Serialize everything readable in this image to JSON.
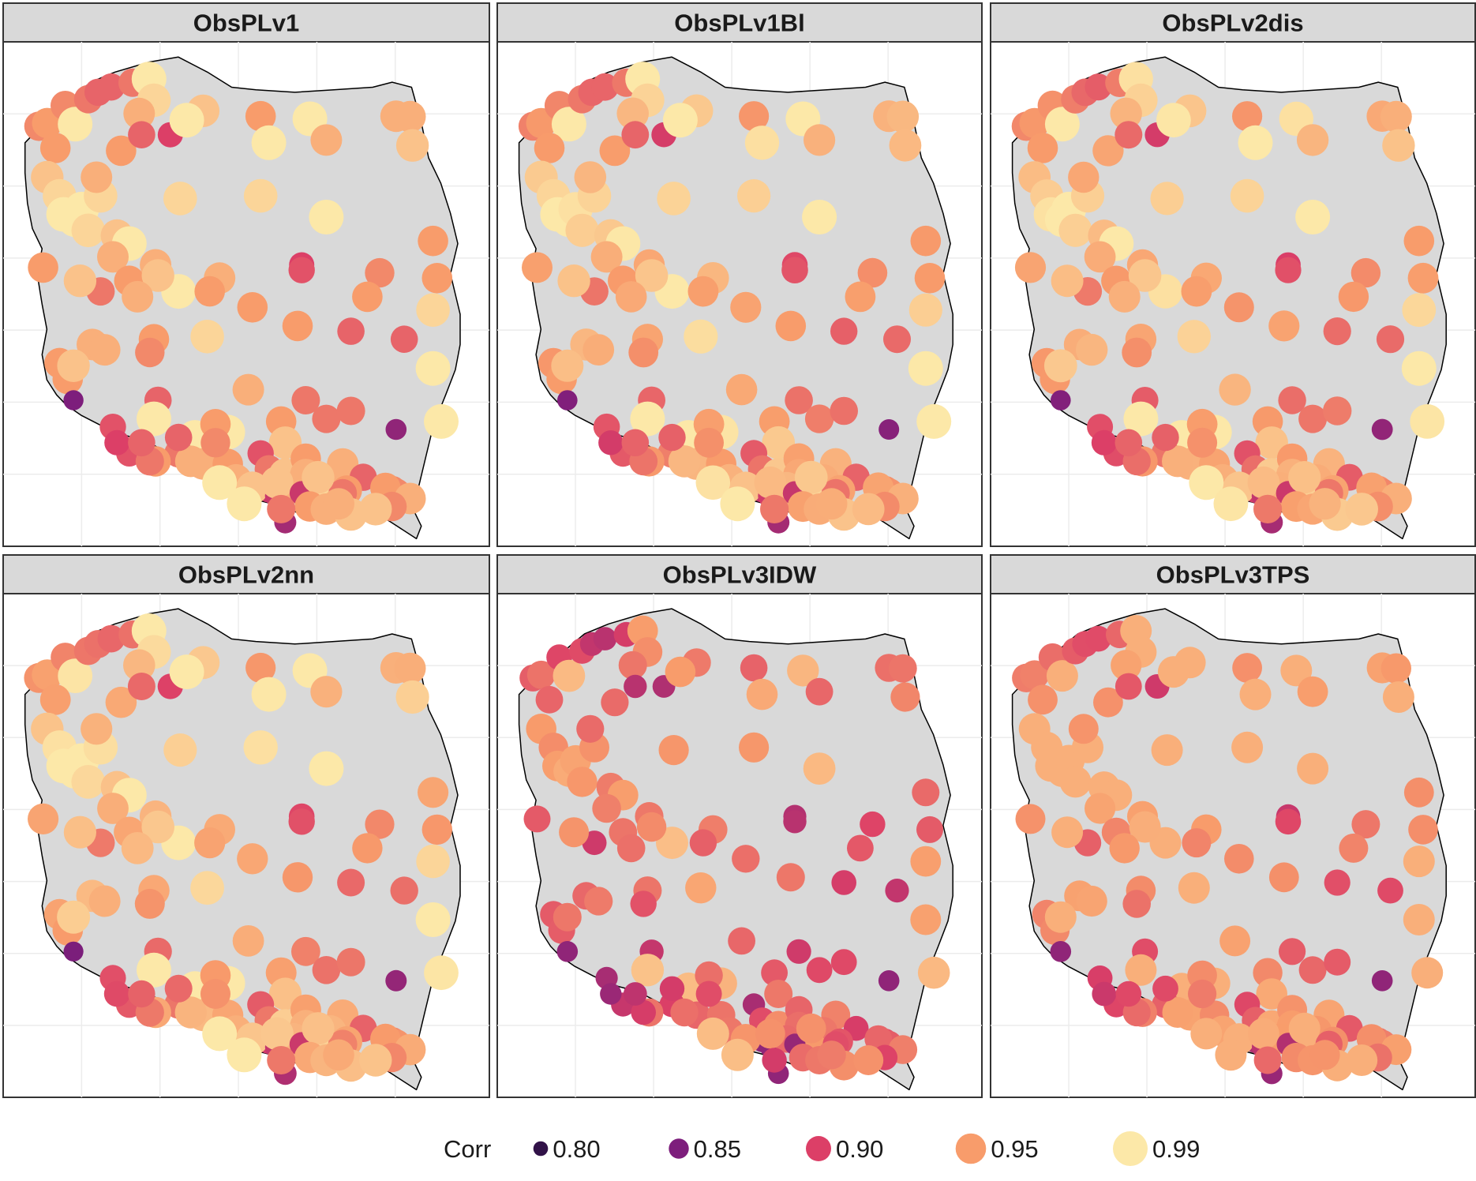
{
  "chart_data": {
    "type": "scatter",
    "panels": [
      {
        "title": "ObsPLv1",
        "points": [
          [
            0.2,
            0.168,
            0.94
          ],
          [
            0.3,
            0.156,
            0.95
          ],
          [
            0.52,
            0.09,
            0.94
          ],
          [
            0.64,
            0.16,
            0.99
          ],
          [
            0.8,
            0.066,
            0.93
          ],
          [
            0.92,
            0.04,
            0.92
          ],
          [
            1.08,
            0.02,
            0.92
          ],
          [
            1.34,
            0.004,
            0.93
          ],
          [
            1.54,
            -0.01,
            0.99
          ],
          [
            1.6,
            0.07,
            0.98
          ],
          [
            1.42,
            0.12,
            0.96
          ],
          [
            2.2,
            0.11,
            0.97
          ],
          [
            2.9,
            0.13,
            0.95
          ],
          [
            3.5,
            0.14,
            0.99
          ],
          [
            4.55,
            0.13,
            0.96
          ],
          [
            4.72,
            0.132,
            0.96
          ],
          [
            0.4,
            0.25,
            0.95
          ],
          [
            0.3,
            0.36,
            0.97
          ],
          [
            0.45,
            0.43,
            0.98
          ],
          [
            0.5,
            0.5,
            0.99
          ],
          [
            0.64,
            0.52,
            0.99
          ],
          [
            0.72,
            0.48,
            0.99
          ],
          [
            0.8,
            0.56,
            0.98
          ],
          [
            0.95,
            0.43,
            0.98
          ],
          [
            0.9,
            0.36,
            0.96
          ],
          [
            1.2,
            0.26,
            0.95
          ],
          [
            1.8,
            0.2,
            0.9
          ],
          [
            1.45,
            0.2,
            0.92
          ],
          [
            2.0,
            0.145,
            0.99
          ],
          [
            3.0,
            0.23,
            0.99
          ],
          [
            3.7,
            0.22,
            0.96
          ],
          [
            4.75,
            0.24,
            0.97
          ],
          [
            1.92,
            0.44,
            0.98
          ],
          [
            2.9,
            0.43,
            0.98
          ],
          [
            3.7,
            0.51,
            0.99
          ],
          [
            0.25,
            0.7,
            0.95
          ],
          [
            1.15,
            0.58,
            0.97
          ],
          [
            1.3,
            0.61,
            0.99
          ],
          [
            1.1,
            0.66,
            0.96
          ],
          [
            1.3,
            0.75,
            0.95
          ],
          [
            0.95,
            0.79,
            0.93
          ],
          [
            1.62,
            0.69,
            0.96
          ],
          [
            1.9,
            0.79,
            0.99
          ],
          [
            0.7,
            0.75,
            0.97
          ],
          [
            0.85,
            0.99,
            0.96
          ],
          [
            0.45,
            1.06,
            0.95
          ],
          [
            3.4,
            0.69,
            0.9
          ],
          [
            3.4,
            0.71,
            0.91
          ],
          [
            4.35,
            0.72,
            0.94
          ],
          [
            4.2,
            0.81,
            0.95
          ],
          [
            5.0,
            0.6,
            0.95
          ],
          [
            5.05,
            0.74,
            0.95
          ],
          [
            5.0,
            0.86,
            0.98
          ],
          [
            1.0,
            1.01,
            0.96
          ],
          [
            1.65,
            0.73,
            0.97
          ],
          [
            2.4,
            0.74,
            0.96
          ],
          [
            2.28,
            0.79,
            0.95
          ],
          [
            1.4,
            0.81,
            0.96
          ],
          [
            1.6,
            0.97,
            0.95
          ],
          [
            2.25,
            0.96,
            0.98
          ],
          [
            2.8,
            0.85,
            0.95
          ],
          [
            3.35,
            0.92,
            0.95
          ],
          [
            4.0,
            0.94,
            0.92
          ],
          [
            4.65,
            0.97,
            0.92
          ],
          [
            5.0,
            1.08,
            0.99
          ],
          [
            0.55,
            1.12,
            0.95
          ],
          [
            0.62,
            1.07,
            0.97
          ],
          [
            0.62,
            1.2,
            0.85
          ],
          [
            1.55,
            1.02,
            0.94
          ],
          [
            1.65,
            1.2,
            0.92
          ],
          [
            1.1,
            1.3,
            0.91
          ],
          [
            1.6,
            1.27,
            0.99
          ],
          [
            2.1,
            1.34,
            0.99
          ],
          [
            2.5,
            1.32,
            0.99
          ],
          [
            1.9,
            1.4,
            0.93
          ],
          [
            2.35,
            1.29,
            0.95
          ],
          [
            2.75,
            1.16,
            0.96
          ],
          [
            3.15,
            1.28,
            0.95
          ],
          [
            3.2,
            1.36,
            0.97
          ],
          [
            3.45,
            1.2,
            0.93
          ],
          [
            3.7,
            1.27,
            0.93
          ],
          [
            4.0,
            1.24,
            0.93
          ],
          [
            4.55,
            1.31,
            0.86
          ],
          [
            5.1,
            1.28,
            0.99
          ],
          [
            2.2,
            1.44,
            0.96
          ],
          [
            2.5,
            1.44,
            0.95
          ],
          [
            2.6,
            1.5,
            0.96
          ],
          [
            2.9,
            1.4,
            0.91
          ],
          [
            3.0,
            1.46,
            0.93
          ],
          [
            3.2,
            1.48,
            0.97
          ],
          [
            3.45,
            1.42,
            0.95
          ],
          [
            3.45,
            1.48,
            0.96
          ],
          [
            3.9,
            1.44,
            0.96
          ],
          [
            4.15,
            1.49,
            0.92
          ],
          [
            4.5,
            1.54,
            0.94
          ],
          [
            3.0,
            1.54,
            0.89
          ],
          [
            2.8,
            1.53,
            0.97
          ],
          [
            3.1,
            1.56,
            0.89
          ],
          [
            3.3,
            1.53,
            0.96
          ],
          [
            3.6,
            1.54,
            0.95
          ],
          [
            3.75,
            1.5,
            0.96
          ],
          [
            3.6,
            1.56,
            0.98
          ],
          [
            3.95,
            1.54,
            0.95
          ],
          [
            4.55,
            1.55,
            0.94
          ],
          [
            4.42,
            1.53,
            0.95
          ],
          [
            4.72,
            1.57,
            0.96
          ],
          [
            2.05,
            1.43,
            0.96
          ],
          [
            1.9,
            1.34,
            0.92
          ],
          [
            1.3,
            1.4,
            0.91
          ],
          [
            1.15,
            1.36,
            0.9
          ],
          [
            1.62,
            1.43,
            0.95
          ],
          [
            2.35,
            1.36,
            0.94
          ],
          [
            1.55,
            1.43,
            0.93
          ],
          [
            3.9,
            1.55,
            0.93
          ],
          [
            1.45,
            1.36,
            0.92
          ],
          [
            2.4,
            1.51,
            0.99
          ],
          [
            3.1,
            1.51,
            0.97
          ],
          [
            3.4,
            1.55,
            0.89
          ],
          [
            3.6,
            1.49,
            0.97
          ],
          [
            2.7,
            1.59,
            0.99
          ],
          [
            3.2,
            1.66,
            0.87
          ],
          [
            3.5,
            1.6,
            0.95
          ],
          [
            3.7,
            1.61,
            0.96
          ],
          [
            4.0,
            1.63,
            0.97
          ],
          [
            4.5,
            1.6,
            0.94
          ],
          [
            3.15,
            1.61,
            0.93
          ],
          [
            3.85,
            1.59,
            0.96
          ],
          [
            4.3,
            1.61,
            0.97
          ]
        ]
      },
      {
        "title": "ObsPLv1Bl",
        "points": []
      },
      {
        "title": "ObsPLv2dis",
        "points": []
      },
      {
        "title": "ObsPLv2nn",
        "points": []
      },
      {
        "title": "ObsPLv3IDW",
        "points": []
      },
      {
        "title": "ObsPLv3TPS",
        "points": []
      }
    ],
    "legend": {
      "title": "Corr",
      "position": "bottom",
      "entries": [
        {
          "label": "0.80",
          "value": 0.8
        },
        {
          "label": "0.85",
          "value": 0.85
        },
        {
          "label": "0.90",
          "value": 0.9
        },
        {
          "label": "0.95",
          "value": 0.95
        },
        {
          "label": "0.99",
          "value": 0.99
        }
      ]
    },
    "color_scale": {
      "stops": [
        {
          "value": 0.78,
          "color": "#120d33"
        },
        {
          "value": 0.85,
          "color": "#7d1e7c"
        },
        {
          "value": 0.9,
          "color": "#dc3f67"
        },
        {
          "value": 0.95,
          "color": "#f89c6b"
        },
        {
          "value": 0.99,
          "color": "#fce8a8"
        }
      ]
    },
    "background": {
      "map_fill": "#d9d9d9",
      "border_color": "#000000",
      "strip_fill": "#d9d9d9"
    },
    "grid": true
  }
}
